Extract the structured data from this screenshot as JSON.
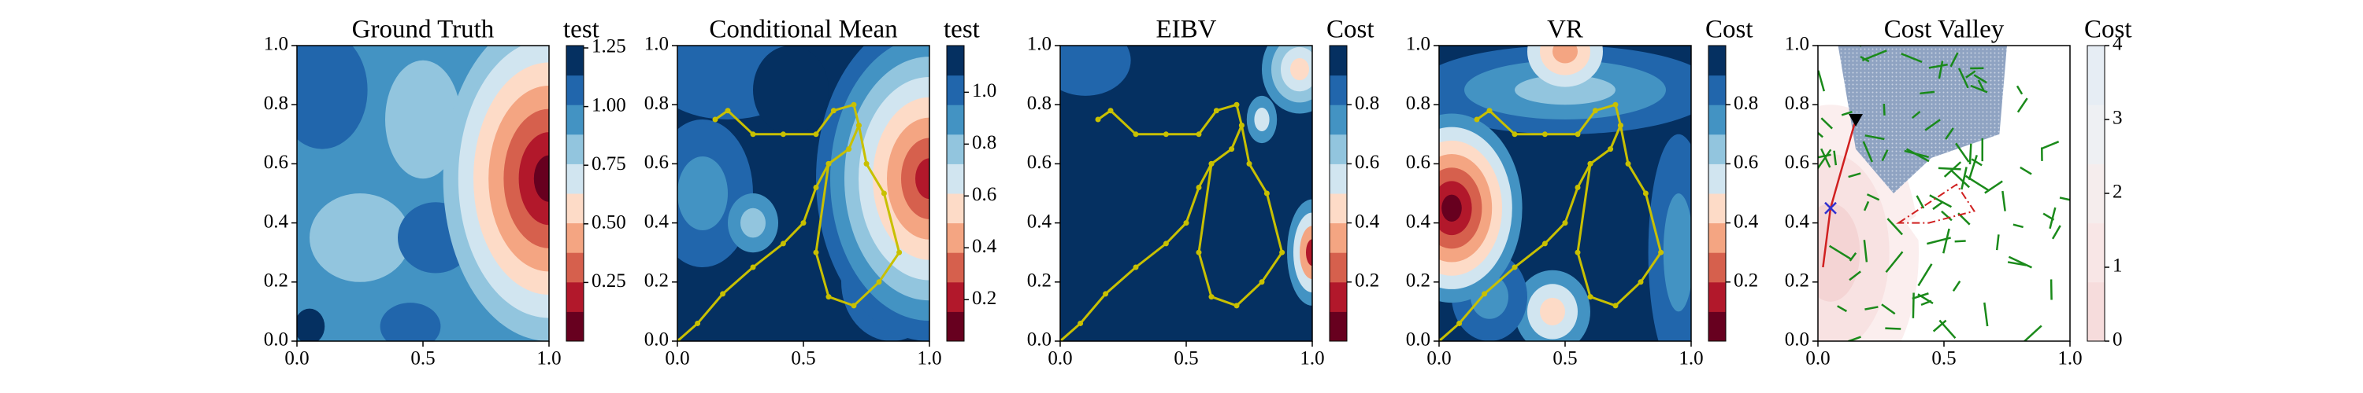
{
  "chart_data": [
    {
      "type": "heatmap",
      "title": "Ground Truth",
      "colorbar_label": "test",
      "xlim": [
        0,
        1
      ],
      "ylim": [
        0,
        1
      ],
      "xticks": [
        {
          "value": 0,
          "label": "0.0"
        },
        {
          "value": 0.5,
          "label": "0.5"
        },
        {
          "value": 1,
          "label": "1.0"
        }
      ],
      "yticks": [
        {
          "value": 0,
          "label": "0.0"
        },
        0.2,
        0.4,
        0.6,
        0.8,
        {
          "value": 1,
          "label": "1.0"
        }
      ],
      "clim": [
        0,
        1.26
      ],
      "cticks": [
        0.25,
        {
          "value": 0.5,
          "label": "0.50"
        },
        0.75,
        {
          "value": 1,
          "label": "1.00"
        },
        1.25
      ],
      "colors": [
        "#67001f",
        "#b2182b",
        "#d6604d",
        "#f4a582",
        "#fddbc7",
        "#d1e5f0",
        "#92c5de",
        "#4393c3",
        "#2166ac",
        "#053061"
      ],
      "paths": []
    },
    {
      "type": "heatmap",
      "title": "Conditional Mean",
      "colorbar_label": "test",
      "xlim": [
        0,
        1
      ],
      "ylim": [
        0,
        1
      ],
      "xticks": [
        {
          "value": 0,
          "label": "0.0"
        },
        {
          "value": 0.5,
          "label": "0.5"
        },
        {
          "value": 1,
          "label": "1.0"
        }
      ],
      "yticks": [
        {
          "value": 0,
          "label": "0.0"
        },
        0.2,
        0.4,
        0.6,
        0.8,
        {
          "value": 1,
          "label": "1.0"
        }
      ],
      "clim": [
        0.04,
        1.18
      ],
      "cticks": [
        0.2,
        0.4,
        0.6,
        0.8,
        {
          "value": 1,
          "label": "1.0"
        }
      ],
      "colors": [
        "#67001f",
        "#b2182b",
        "#d6604d",
        "#f4a582",
        "#fddbc7",
        "#d1e5f0",
        "#92c5de",
        "#4393c3",
        "#2166ac",
        "#053061"
      ],
      "paths": [
        {
          "color": "#c8c000",
          "x": [
            0.0,
            0.08,
            0.18,
            0.3,
            0.42,
            0.5,
            0.55,
            0.6,
            0.68,
            0.72,
            0.7,
            0.62,
            0.55,
            0.42,
            0.3,
            0.2,
            0.15
          ],
          "y": [
            0.0,
            0.06,
            0.16,
            0.25,
            0.33,
            0.4,
            0.52,
            0.6,
            0.65,
            0.73,
            0.8,
            0.78,
            0.7,
            0.7,
            0.7,
            0.78,
            0.75
          ]
        },
        {
          "color": "#c8c000",
          "x": [
            0.6,
            0.55,
            0.6,
            0.7,
            0.8,
            0.88,
            0.82,
            0.75,
            0.72
          ],
          "y": [
            0.6,
            0.3,
            0.15,
            0.12,
            0.2,
            0.3,
            0.5,
            0.6,
            0.73
          ]
        }
      ]
    },
    {
      "type": "heatmap",
      "title": "EIBV",
      "colorbar_label": "Cost",
      "xlim": [
        0,
        1
      ],
      "ylim": [
        0,
        1
      ],
      "xticks": [
        {
          "value": 0,
          "label": "0.0"
        },
        {
          "value": 0.5,
          "label": "0.5"
        },
        {
          "value": 1,
          "label": "1.0"
        }
      ],
      "yticks": [
        {
          "value": 0,
          "label": "0.0"
        },
        0.2,
        0.4,
        0.6,
        0.8,
        {
          "value": 1,
          "label": "1.0"
        }
      ],
      "clim": [
        0,
        1
      ],
      "cticks": [
        0.2,
        0.4,
        0.6,
        0.8
      ],
      "colors": [
        "#67001f",
        "#b2182b",
        "#d6604d",
        "#f4a582",
        "#fddbc7",
        "#d1e5f0",
        "#92c5de",
        "#4393c3",
        "#2166ac",
        "#053061"
      ],
      "paths": [
        {
          "color": "#c8c000",
          "x": [
            0.0,
            0.08,
            0.18,
            0.3,
            0.42,
            0.5,
            0.55,
            0.6,
            0.68,
            0.72,
            0.7,
            0.62,
            0.55,
            0.42,
            0.3,
            0.2,
            0.15
          ],
          "y": [
            0.0,
            0.06,
            0.16,
            0.25,
            0.33,
            0.4,
            0.52,
            0.6,
            0.65,
            0.73,
            0.8,
            0.78,
            0.7,
            0.7,
            0.7,
            0.78,
            0.75
          ]
        },
        {
          "color": "#c8c000",
          "x": [
            0.6,
            0.55,
            0.6,
            0.7,
            0.8,
            0.88,
            0.82,
            0.75,
            0.72
          ],
          "y": [
            0.6,
            0.3,
            0.15,
            0.12,
            0.2,
            0.3,
            0.5,
            0.6,
            0.73
          ]
        }
      ]
    },
    {
      "type": "heatmap",
      "title": "VR",
      "colorbar_label": "Cost",
      "xlim": [
        0,
        1
      ],
      "ylim": [
        0,
        1
      ],
      "xticks": [
        {
          "value": 0,
          "label": "0.0"
        },
        {
          "value": 0.5,
          "label": "0.5"
        },
        {
          "value": 1,
          "label": "1.0"
        }
      ],
      "yticks": [
        {
          "value": 0,
          "label": "0.0"
        },
        0.2,
        0.4,
        0.6,
        0.8,
        {
          "value": 1,
          "label": "1.0"
        }
      ],
      "clim": [
        0,
        1
      ],
      "cticks": [
        0.2,
        0.4,
        0.6,
        0.8
      ],
      "colors": [
        "#67001f",
        "#b2182b",
        "#d6604d",
        "#f4a582",
        "#fddbc7",
        "#d1e5f0",
        "#92c5de",
        "#4393c3",
        "#2166ac",
        "#053061"
      ],
      "paths": [
        {
          "color": "#c8c000",
          "x": [
            0.0,
            0.08,
            0.18,
            0.3,
            0.42,
            0.5,
            0.55,
            0.6,
            0.68,
            0.72,
            0.7,
            0.62,
            0.55,
            0.42,
            0.3,
            0.2,
            0.15
          ],
          "y": [
            0.0,
            0.06,
            0.16,
            0.25,
            0.33,
            0.4,
            0.52,
            0.6,
            0.65,
            0.73,
            0.8,
            0.78,
            0.7,
            0.7,
            0.7,
            0.78,
            0.75
          ]
        },
        {
          "color": "#c8c000",
          "x": [
            0.6,
            0.55,
            0.6,
            0.7,
            0.8,
            0.88,
            0.82,
            0.75,
            0.72
          ],
          "y": [
            0.6,
            0.3,
            0.15,
            0.12,
            0.2,
            0.3,
            0.5,
            0.6,
            0.73
          ]
        }
      ]
    },
    {
      "type": "heatmap",
      "title": "Cost Valley",
      "colorbar_label": "Cost",
      "xlim": [
        0,
        1
      ],
      "ylim": [
        0,
        1
      ],
      "xticks": [
        {
          "value": 0,
          "label": "0.0"
        },
        {
          "value": 0.5,
          "label": "0.5"
        },
        {
          "value": 1,
          "label": "1.0"
        }
      ],
      "yticks": [
        {
          "value": 0,
          "label": "0.0"
        },
        0.2,
        0.4,
        0.6,
        0.8,
        {
          "value": 1,
          "label": "1.0"
        }
      ],
      "clim": [
        0,
        4
      ],
      "cticks": [
        0,
        1,
        2,
        3,
        4
      ],
      "colors": [
        "#f6dcdc",
        "#f8e6e6",
        "#f5eded",
        "#eef0f3",
        "#e6edf4"
      ],
      "paths": []
    }
  ]
}
